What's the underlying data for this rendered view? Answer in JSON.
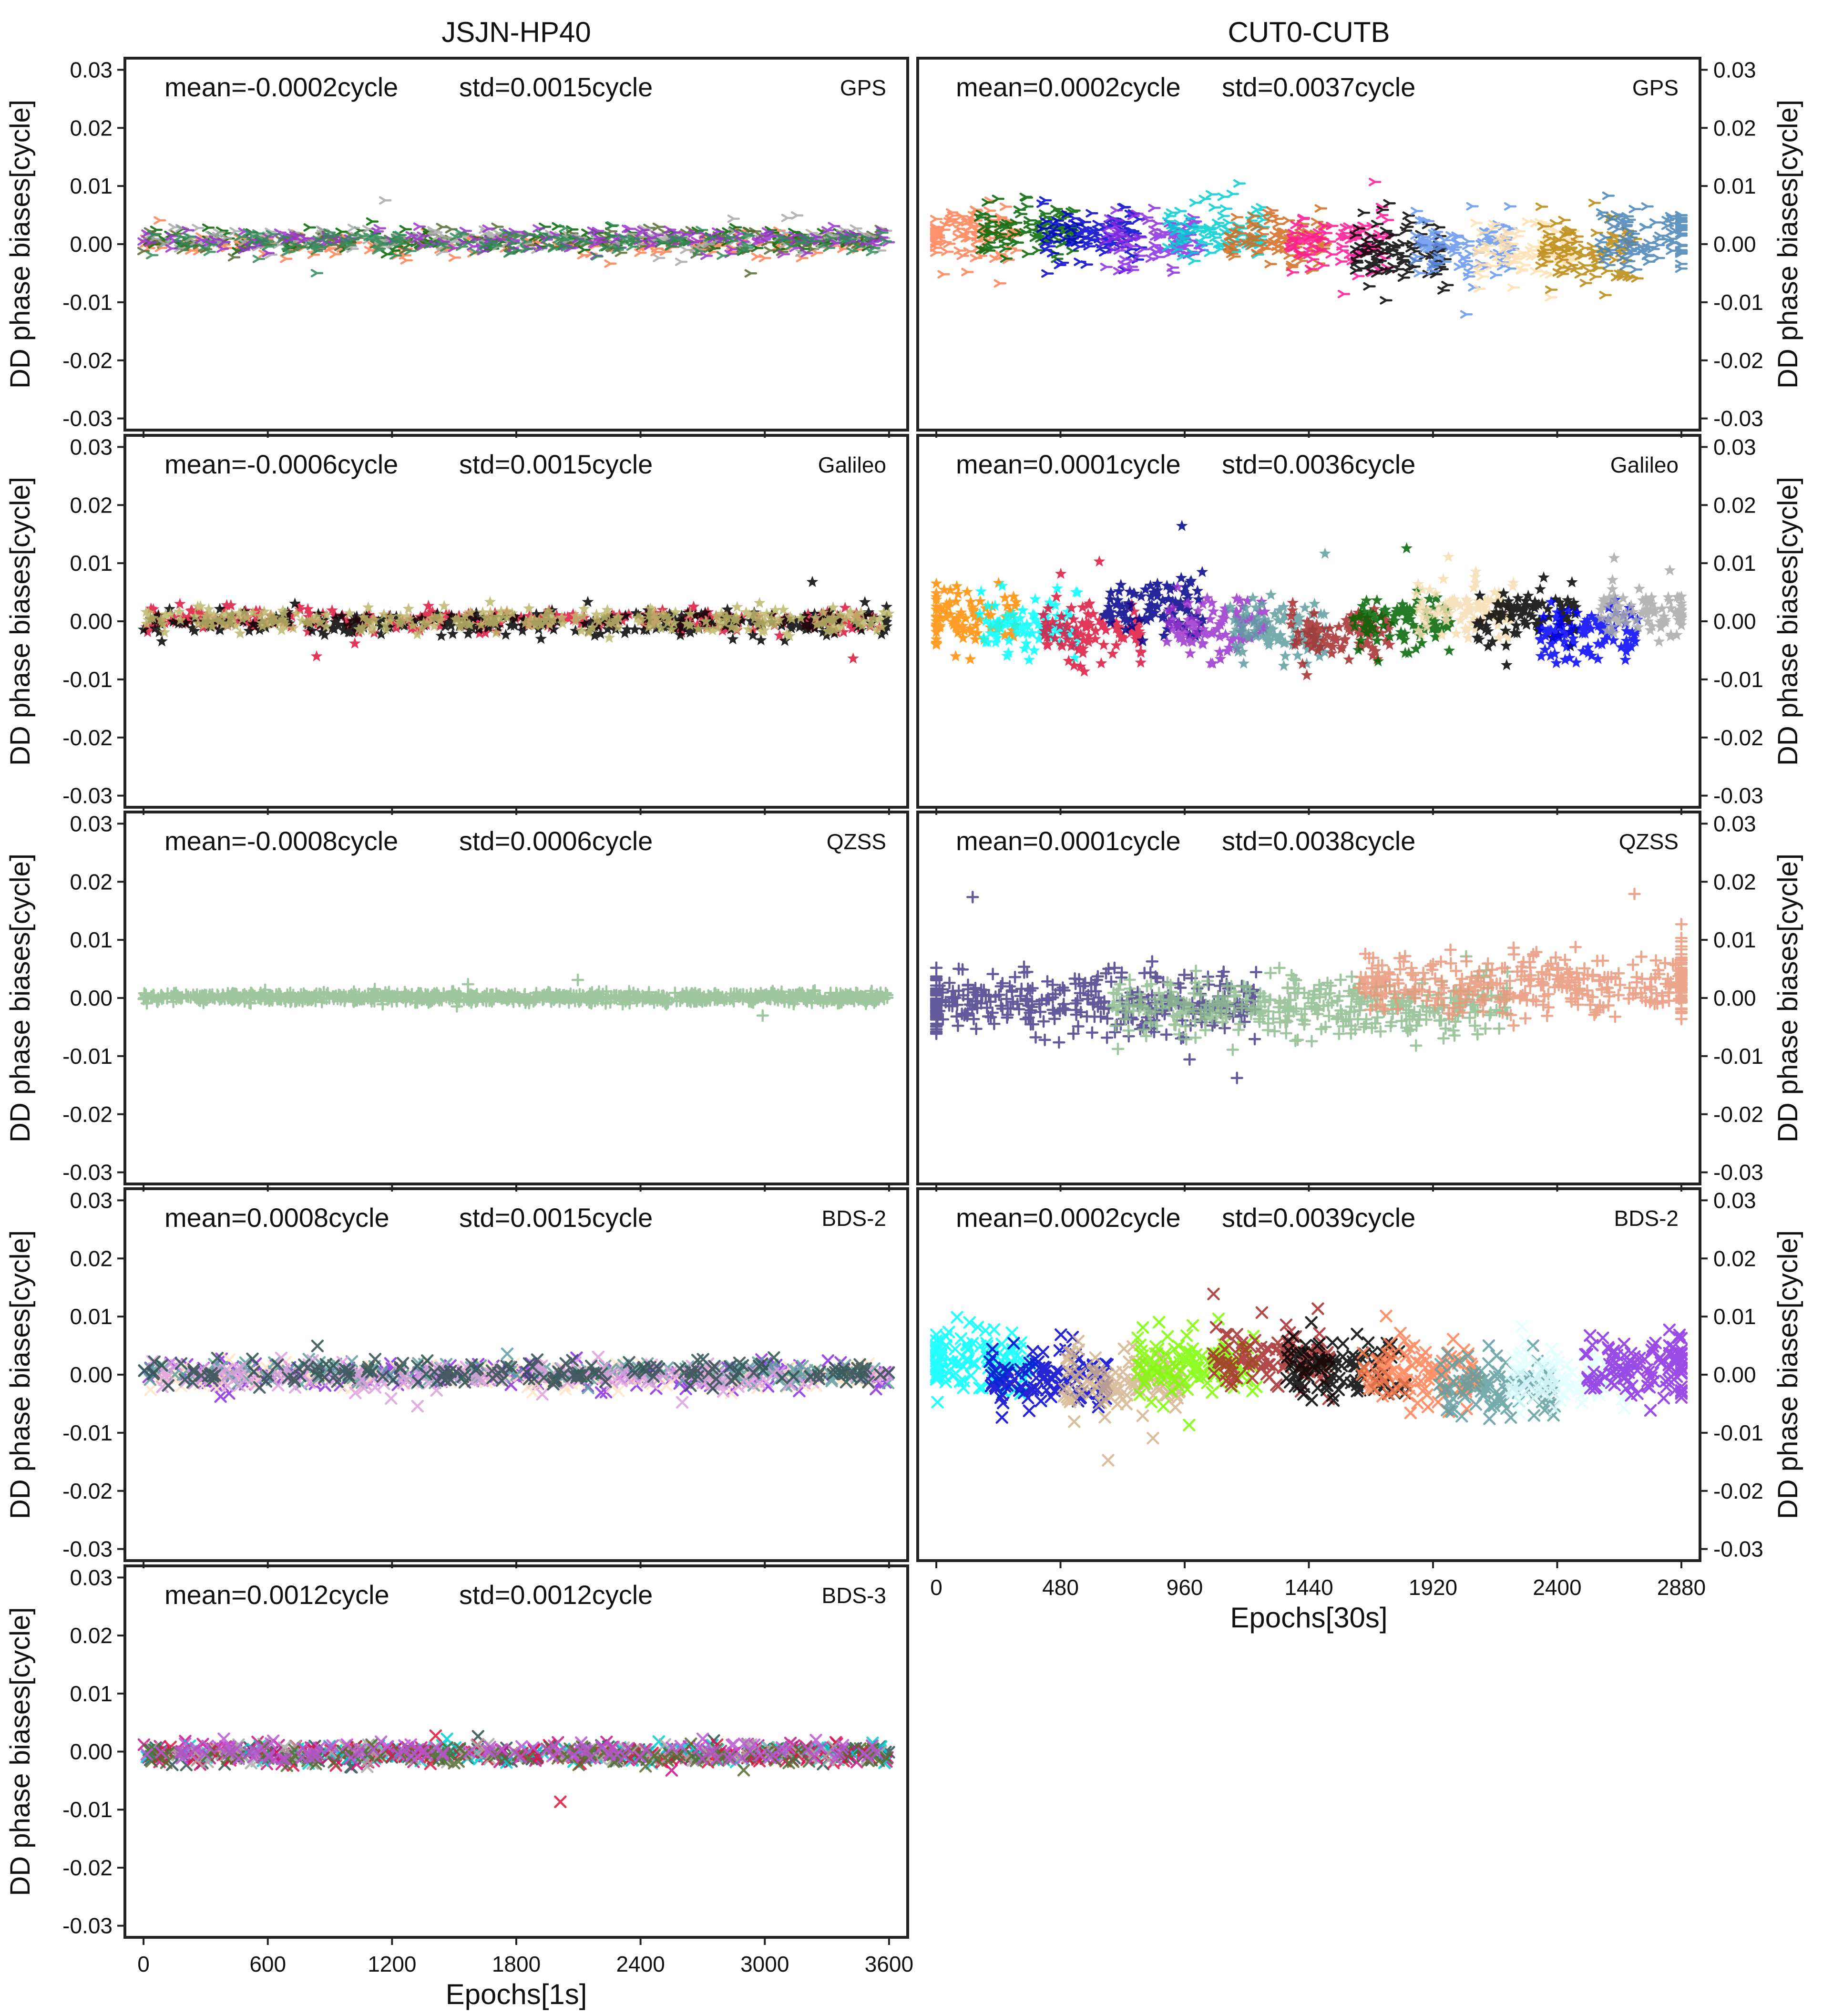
{
  "chart_data": {
    "type": "scatter",
    "columns": [
      {
        "title": "JSJN-HP40",
        "xlabel": "Epochs[1s]",
        "xlim": [
          -90,
          3690
        ],
        "xticks": [
          0,
          600,
          1200,
          1800,
          2400,
          3000,
          3600
        ],
        "panels": [
          {
            "system": "GPS",
            "mean_label": "mean=-0.0002cycle",
            "std_label": "std=0.0015cycle",
            "marker": "tri",
            "spread": 0.0015,
            "x_end": 3600,
            "colors": [
              "#ff7f50",
              "#006400",
              "#556b2f",
              "#a9a9a9",
              "#9932cc",
              "#2e8b57"
            ]
          },
          {
            "system": "Galileo",
            "mean_label": "mean=-0.0006cycle",
            "std_label": "std=0.0015cycle",
            "marker": "star",
            "spread": 0.0015,
            "x_end": 3600,
            "colors": [
              "#dc143c",
              "#000000",
              "#bdb76b"
            ]
          },
          {
            "system": "QZSS",
            "mean_label": "mean=-0.0008cycle",
            "std_label": "std=0.0006cycle",
            "marker": "plus",
            "spread": 0.0006,
            "x_end": 3600,
            "colors": [
              "#8fbc8f"
            ]
          },
          {
            "system": "BDS-2",
            "mean_label": "mean=0.0008cycle",
            "std_label": "std=0.0015cycle",
            "marker": "x",
            "spread": 0.0015,
            "x_end": 3600,
            "colors": [
              "#8a2be2",
              "#ffe4c4",
              "#5f9ea0",
              "#dda0dd",
              "#2f4f4f"
            ]
          },
          {
            "system": "BDS-3",
            "mean_label": "mean=0.0012cycle",
            "std_label": "std=0.0012cycle",
            "marker": "x",
            "spread": 0.0012,
            "x_end": 3600,
            "colors": [
              "#2f4f4f",
              "#c71585",
              "#00ced1",
              "#dc143c",
              "#a9a9a9",
              "#556b2f",
              "#ba55d3"
            ]
          }
        ]
      },
      {
        "title": "CUT0-CUTB",
        "xlabel": "Epochs[30s]",
        "xlim": [
          -72,
          2952
        ],
        "xticks": [
          0,
          480,
          960,
          1440,
          1920,
          2400,
          2880
        ],
        "panels": [
          {
            "system": "GPS",
            "mean_label": "mean=0.0002cycle",
            "std_label": "std=0.0037cycle",
            "marker": "tri",
            "spread": 0.0037,
            "x_end": 2880,
            "colors": [
              "#ff7f50",
              "#006400",
              "#0000cd",
              "#8a2be2",
              "#00ced1",
              "#d2691e",
              "#ff1493",
              "#000000",
              "#6495ed",
              "#ffdead",
              "#b8860b",
              "#4682b4"
            ]
          },
          {
            "system": "Galileo",
            "mean_label": "mean=0.0001cycle",
            "std_label": "std=0.0036cycle",
            "marker": "star",
            "spread": 0.0036,
            "x_end": 2880,
            "colors": [
              "#ff8c00",
              "#00ffff",
              "#dc143c",
              "#00008b",
              "#9932cc",
              "#5f9ea0",
              "#a52a2a",
              "#006400",
              "#f5deb3",
              "#000000",
              "#0000ff",
              "#a9a9a9"
            ]
          },
          {
            "system": "QZSS",
            "mean_label": "mean=0.0001cycle",
            "std_label": "std=0.0038cycle",
            "marker": "plus",
            "spread": 0.0038,
            "x_end": 2880,
            "colors": [
              "#483d8b",
              "#8fbc8f",
              "#e9967a"
            ]
          },
          {
            "system": "BDS-2",
            "mean_label": "mean=0.0002cycle",
            "std_label": "std=0.0039cycle",
            "marker": "x",
            "spread": 0.0039,
            "x_end": 2880,
            "colors": [
              "#00ffff",
              "#0000cd",
              "#d2b48c",
              "#7cfc00",
              "#a52a2a",
              "#000000",
              "#ff7f50",
              "#5f9ea0",
              "#e0ffff",
              "#8a2be2"
            ]
          }
        ]
      }
    ],
    "ylabel": "DD phase biases[cycle]",
    "ylim": [
      -0.032,
      0.032
    ],
    "yticks": [
      -0.03,
      -0.02,
      -0.01,
      0.0,
      0.01,
      0.02,
      0.03
    ],
    "ytick_labels": [
      "-0.03",
      "-0.02",
      "-0.01",
      "0.00",
      "0.01",
      "0.02",
      "0.03"
    ]
  }
}
